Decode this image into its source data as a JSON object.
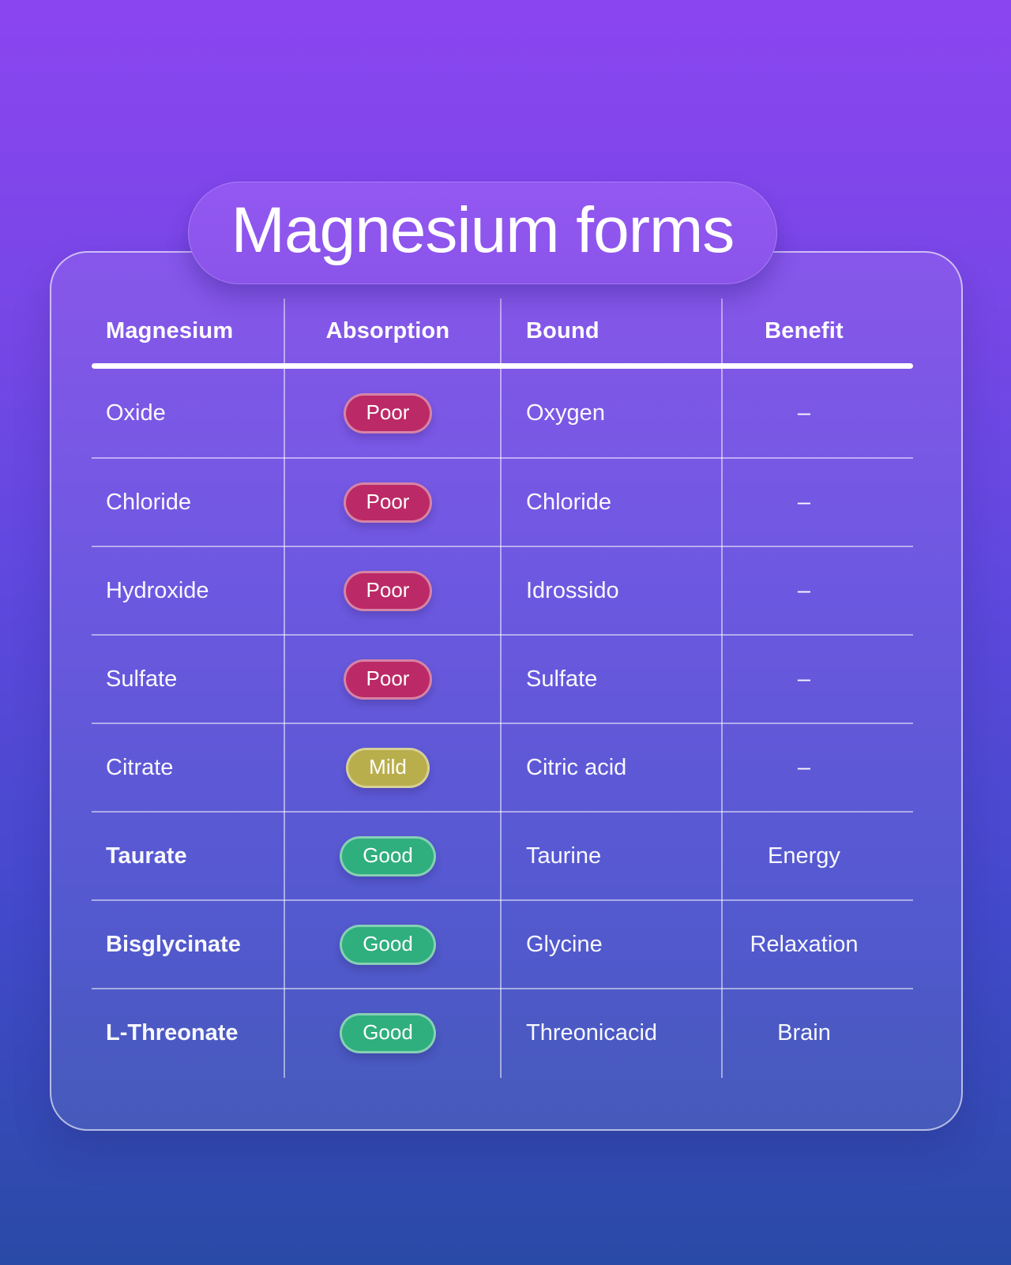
{
  "page_title": "Magnesium forms",
  "table": {
    "headers": [
      "Magnesium",
      "Absorption",
      "Bound",
      "Benefit"
    ],
    "rows": [
      {
        "name": "Oxide",
        "absorption": "Poor",
        "level": "poor",
        "bound": "Oxygen",
        "benefit": "–",
        "emphasized": false
      },
      {
        "name": "Chloride",
        "absorption": "Poor",
        "level": "poor",
        "bound": "Chloride",
        "benefit": "–",
        "emphasized": false
      },
      {
        "name": "Hydroxide",
        "absorption": "Poor",
        "level": "poor",
        "bound": "Idrossido",
        "benefit": "–",
        "emphasized": false
      },
      {
        "name": "Sulfate",
        "absorption": "Poor",
        "level": "poor",
        "bound": "Sulfate",
        "benefit": "–",
        "emphasized": false
      },
      {
        "name": "Citrate",
        "absorption": "Mild",
        "level": "mild",
        "bound": "Citric acid",
        "benefit": "–",
        "emphasized": false
      },
      {
        "name": "Taurate",
        "absorption": "Good",
        "level": "good",
        "bound": "Taurine",
        "benefit": "Energy",
        "emphasized": true
      },
      {
        "name": "Bisglycinate",
        "absorption": "Good",
        "level": "good",
        "bound": "Glycine",
        "benefit": "Relaxation",
        "emphasized": true
      },
      {
        "name": "L-Threonate",
        "absorption": "Good",
        "level": "good",
        "bound": "Threonicacid",
        "benefit": "Brain",
        "emphasized": true
      }
    ]
  },
  "colors": {
    "background_top": "#8b45f0",
    "background_mid": "#6148df",
    "background_bottom": "#2a4aa6",
    "pill_poor": "#bb2a66",
    "pill_mild": "#b9ae4c",
    "pill_good": "#2fae7e",
    "text": "#ffffff"
  },
  "chart_data": {
    "type": "table",
    "title": "Magnesium forms",
    "columns": [
      "Magnesium",
      "Absorption",
      "Bound",
      "Benefit"
    ],
    "rows": [
      [
        "Oxide",
        "Poor",
        "Oxygen",
        "–"
      ],
      [
        "Chloride",
        "Poor",
        "Chloride",
        "–"
      ],
      [
        "Hydroxide",
        "Poor",
        "Idrossido",
        "–"
      ],
      [
        "Sulfate",
        "Poor",
        "Sulfate",
        "–"
      ],
      [
        "Citrate",
        "Mild",
        "Citric acid",
        "–"
      ],
      [
        "Taurate",
        "Good",
        "Taurine",
        "Energy"
      ],
      [
        "Bisglycinate",
        "Good",
        "Glycine",
        "Relaxation"
      ],
      [
        "L-Threonate",
        "Good",
        "Threonicacid",
        "Brain"
      ]
    ],
    "absorption_color_coding": {
      "Poor": "#bb2a66",
      "Mild": "#b9ae4c",
      "Good": "#2fae7e"
    }
  }
}
